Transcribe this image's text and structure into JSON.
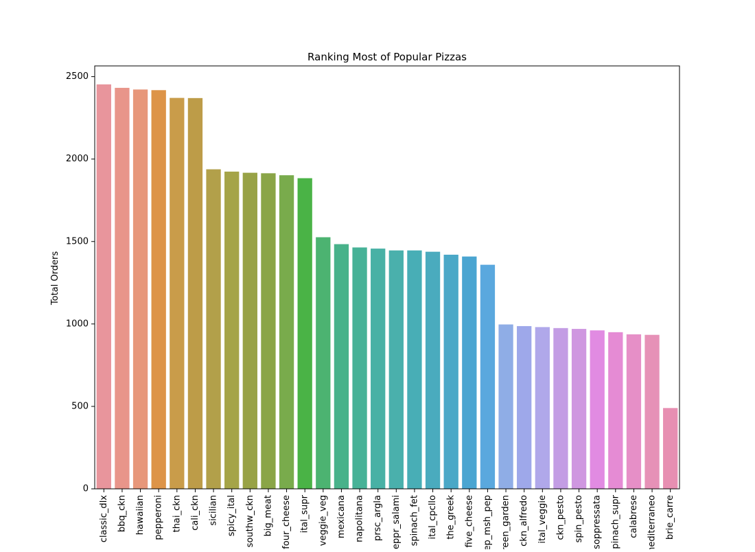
{
  "chart_data": {
    "type": "bar",
    "title": "Ranking Most of Popular Pizzas",
    "xlabel": "",
    "ylabel": "Total Orders",
    "ylim": [
      0,
      2565
    ],
    "yticks": [
      0,
      500,
      1000,
      1500,
      2000,
      2500
    ],
    "grid": false,
    "categories": [
      "classic_dlx",
      "bbq_ckn",
      "hawaiian",
      "pepperoni",
      "thai_ckn",
      "cali_ckn",
      "sicilian",
      "spicy_ital",
      "southw_ckn",
      "big_meat",
      "four_cheese",
      "ital_supr",
      "veggie_veg",
      "mexicana",
      "napolitana",
      "prsc_argla",
      "peppr_salami",
      "spinach_fet",
      "ital_cpcllo",
      "the_greek",
      "five_cheese",
      "pep_msh_pep",
      "green_garden",
      "ckn_alfredo",
      "ital_veggie",
      "ckn_pesto",
      "spin_pesto",
      "soppressata",
      "spinach_supr",
      "calabrese",
      "mediterraneo",
      "brie_carre"
    ],
    "values": [
      2453,
      2432,
      2422,
      2418,
      2371,
      2370,
      1938,
      1924,
      1917,
      1914,
      1902,
      1884,
      1526,
      1484,
      1464,
      1457,
      1446,
      1446,
      1438,
      1420,
      1409,
      1359,
      997,
      987,
      981,
      975,
      970,
      961,
      950,
      937,
      934,
      490
    ],
    "colors": [
      "#e8959c",
      "#e8958a",
      "#e7977a",
      "#dd9448",
      "#c99c4a",
      "#bd9c48",
      "#b2a04a",
      "#a5a448",
      "#98a246",
      "#8aa547",
      "#79ab4c",
      "#4ab346",
      "#4cb371",
      "#48b28a",
      "#47b297",
      "#48b1a5",
      "#4ab0ac",
      "#48aeb6",
      "#4aabbe",
      "#4aa8c7",
      "#4aa5d1",
      "#5aa8de",
      "#8fade6",
      "#9ea8ea",
      "#b0a8ea",
      "#c39de4",
      "#cf97e0",
      "#e18be2",
      "#e58bd4",
      "#e68fc7",
      "#e691b7",
      "#e78fb2"
    ]
  }
}
